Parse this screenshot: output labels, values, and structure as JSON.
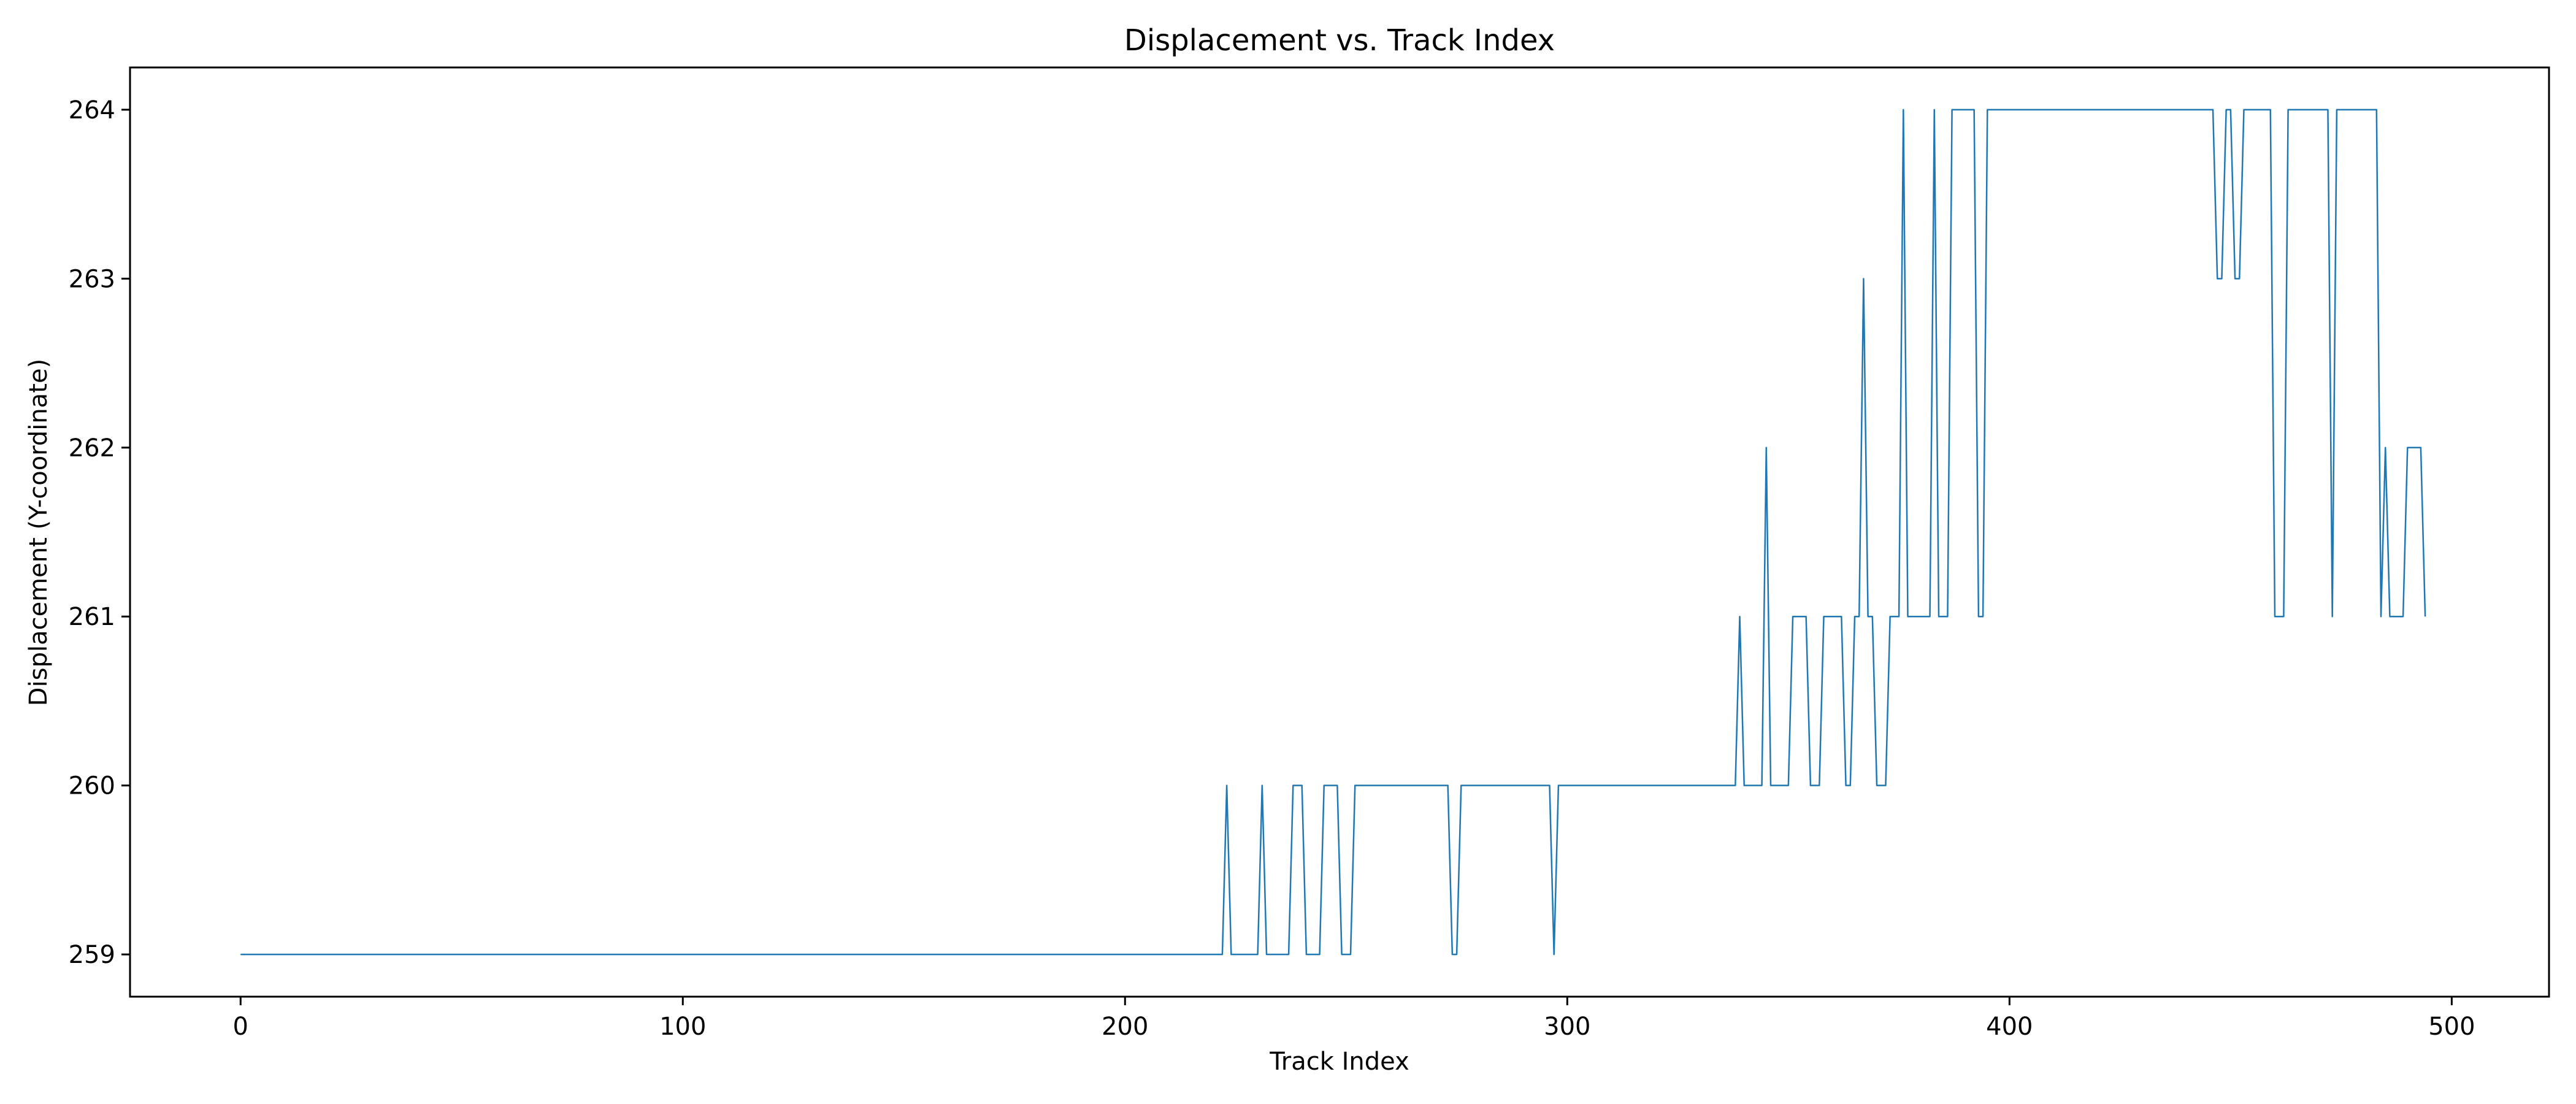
{
  "chart_data": {
    "type": "line",
    "title": "Displacement vs. Track Index",
    "xlabel": "Track Index",
    "ylabel": "Displacement (Y-coordinate)",
    "xlim": [
      -25,
      522
    ],
    "ylim": [
      258.75,
      264.25
    ],
    "xticks": [
      0,
      100,
      200,
      300,
      400,
      500
    ],
    "yticks": [
      259,
      260,
      261,
      262,
      263,
      264
    ],
    "grid": false,
    "legend": "none",
    "series": [
      {
        "color": "#1f77b4",
        "points": [
          [
            0,
            259
          ],
          [
            222,
            259
          ],
          [
            223,
            260
          ],
          [
            224,
            259
          ],
          [
            230,
            259
          ],
          [
            231,
            260
          ],
          [
            232,
            259
          ],
          [
            237,
            259
          ],
          [
            238,
            260
          ],
          [
            240,
            260
          ],
          [
            241,
            259
          ],
          [
            244,
            259
          ],
          [
            245,
            260
          ],
          [
            248,
            260
          ],
          [
            249,
            259
          ],
          [
            251,
            259
          ],
          [
            252,
            260
          ],
          [
            273,
            260
          ],
          [
            274,
            259
          ],
          [
            275,
            259
          ],
          [
            276,
            260
          ],
          [
            296,
            260
          ],
          [
            297,
            259
          ],
          [
            298,
            260
          ],
          [
            338,
            260
          ],
          [
            339,
            261
          ],
          [
            340,
            260
          ],
          [
            344,
            260
          ],
          [
            345,
            262
          ],
          [
            346,
            260
          ],
          [
            350,
            260
          ],
          [
            351,
            261
          ],
          [
            354,
            261
          ],
          [
            355,
            260
          ],
          [
            357,
            260
          ],
          [
            358,
            261
          ],
          [
            362,
            261
          ],
          [
            363,
            260
          ],
          [
            364,
            260
          ],
          [
            365,
            261
          ],
          [
            366,
            261
          ],
          [
            367,
            263
          ],
          [
            368,
            261
          ],
          [
            369,
            261
          ],
          [
            370,
            260
          ],
          [
            372,
            260
          ],
          [
            373,
            261
          ],
          [
            375,
            261
          ],
          [
            376,
            264
          ],
          [
            377,
            261
          ],
          [
            382,
            261
          ],
          [
            383,
            264
          ],
          [
            384,
            261
          ],
          [
            386,
            261
          ],
          [
            387,
            264
          ],
          [
            392,
            264
          ],
          [
            393,
            261
          ],
          [
            394,
            261
          ],
          [
            395,
            264
          ],
          [
            446,
            264
          ],
          [
            447,
            263
          ],
          [
            448,
            263
          ],
          [
            449,
            264
          ],
          [
            450,
            264
          ],
          [
            451,
            263
          ],
          [
            452,
            263
          ],
          [
            453,
            264
          ],
          [
            459,
            264
          ],
          [
            460,
            261
          ],
          [
            462,
            261
          ],
          [
            463,
            264
          ],
          [
            472,
            264
          ],
          [
            473,
            261
          ],
          [
            474,
            264
          ],
          [
            483,
            264
          ],
          [
            484,
            261
          ],
          [
            485,
            262
          ],
          [
            486,
            261
          ],
          [
            489,
            261
          ],
          [
            490,
            262
          ],
          [
            493,
            262
          ],
          [
            494,
            261
          ]
        ]
      }
    ]
  }
}
